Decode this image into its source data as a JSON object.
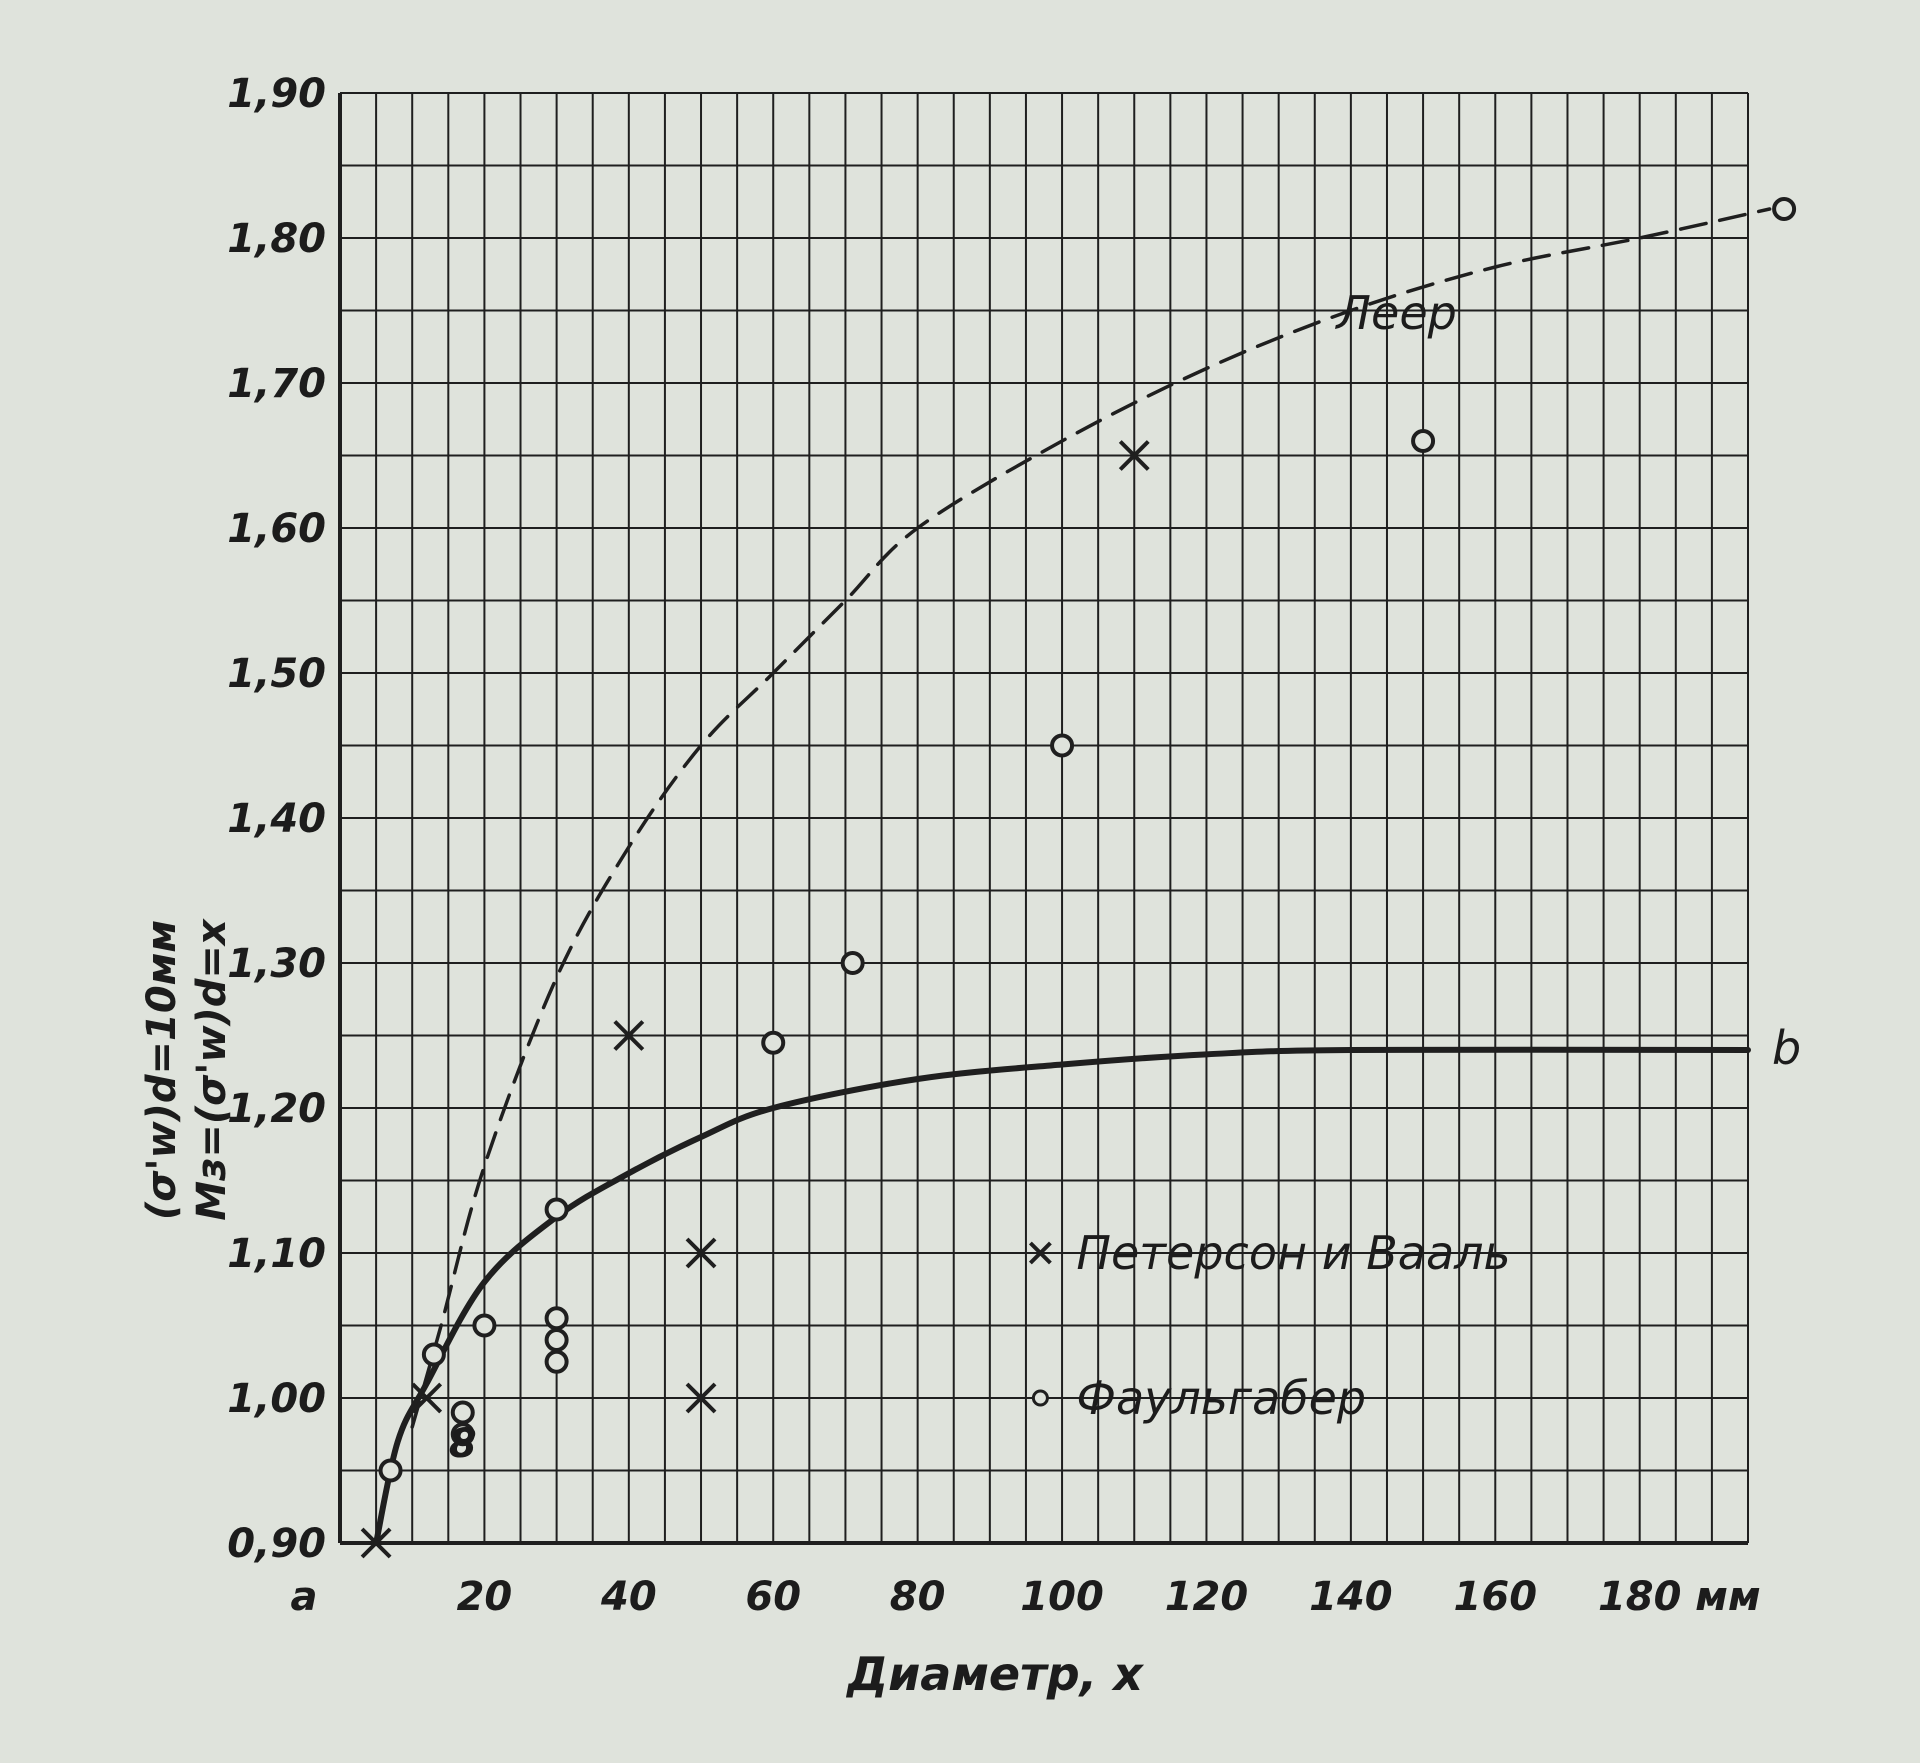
{
  "chart_data": {
    "type": "scatter",
    "title": "",
    "xlabel": "Диаметр, x",
    "x_unit": "мм",
    "ylabel_lines": [
      "(σ'w)d=10мм",
      "Mз=(σ'w)d=x"
    ],
    "xlim": [
      0,
      195
    ],
    "ylim": [
      0.9,
      1.9
    ],
    "grid": true,
    "x_ticks": [
      {
        "value": 0,
        "label": "a"
      },
      {
        "value": 20,
        "label": "20"
      },
      {
        "value": 40,
        "label": "40"
      },
      {
        "value": 60,
        "label": "60"
      },
      {
        "value": 80,
        "label": "80"
      },
      {
        "value": 100,
        "label": "100"
      },
      {
        "value": 120,
        "label": "120"
      },
      {
        "value": 140,
        "label": "140"
      },
      {
        "value": 160,
        "label": "160"
      },
      {
        "value": 180,
        "label": "180"
      }
    ],
    "y_ticks": [
      {
        "value": 0.9,
        "label": "0,90"
      },
      {
        "value": 1.0,
        "label": "1,00"
      },
      {
        "value": 1.1,
        "label": "1,10"
      },
      {
        "value": 1.2,
        "label": "1,20"
      },
      {
        "value": 1.3,
        "label": "1,30"
      },
      {
        "value": 1.4,
        "label": "1,40"
      },
      {
        "value": 1.5,
        "label": "1,50"
      },
      {
        "value": 1.6,
        "label": "1,60"
      },
      {
        "value": 1.7,
        "label": "1,70"
      },
      {
        "value": 1.8,
        "label": "1,80"
      },
      {
        "value": 1.9,
        "label": "1,90"
      }
    ],
    "series": [
      {
        "name": "Петерсон и Вааль",
        "kind": "points",
        "marker": "x",
        "points": [
          {
            "x": 5,
            "y": 0.9
          },
          {
            "x": 12,
            "y": 1.0
          },
          {
            "x": 40,
            "y": 1.25
          },
          {
            "x": 50,
            "y": 1.1
          },
          {
            "x": 50,
            "y": 1.0
          },
          {
            "x": 110,
            "y": 1.65
          }
        ]
      },
      {
        "name": "Фаульгабер",
        "kind": "points",
        "marker": "o",
        "points": [
          {
            "x": 7,
            "y": 0.95
          },
          {
            "x": 13,
            "y": 1.03
          },
          {
            "x": 17,
            "y": 0.99
          },
          {
            "x": 17,
            "y": 0.975
          },
          {
            "x": 20,
            "y": 1.05
          },
          {
            "x": 30,
            "y": 1.13
          },
          {
            "x": 30,
            "y": 1.055
          },
          {
            "x": 30,
            "y": 1.04
          },
          {
            "x": 30,
            "y": 1.025
          },
          {
            "x": 60,
            "y": 1.245
          },
          {
            "x": 71,
            "y": 1.3
          },
          {
            "x": 100,
            "y": 1.45
          },
          {
            "x": 150,
            "y": 1.66
          },
          {
            "x": 200,
            "y": 1.82
          }
        ]
      },
      {
        "label": "b",
        "kind": "curve",
        "style": "solid",
        "points": [
          {
            "x": 5,
            "y": 0.9
          },
          {
            "x": 8,
            "y": 0.97
          },
          {
            "x": 12,
            "y": 1.01
          },
          {
            "x": 20,
            "y": 1.08
          },
          {
            "x": 30,
            "y": 1.125
          },
          {
            "x": 40,
            "y": 1.155
          },
          {
            "x": 50,
            "y": 1.18
          },
          {
            "x": 60,
            "y": 1.2
          },
          {
            "x": 80,
            "y": 1.22
          },
          {
            "x": 100,
            "y": 1.23
          },
          {
            "x": 120,
            "y": 1.237
          },
          {
            "x": 140,
            "y": 1.24
          },
          {
            "x": 195,
            "y": 1.24
          }
        ]
      },
      {
        "label": "Леер",
        "kind": "curve",
        "style": "dashed",
        "points": [
          {
            "x": 10,
            "y": 0.98
          },
          {
            "x": 14,
            "y": 1.05
          },
          {
            "x": 20,
            "y": 1.16
          },
          {
            "x": 30,
            "y": 1.29
          },
          {
            "x": 40,
            "y": 1.38
          },
          {
            "x": 50,
            "y": 1.45
          },
          {
            "x": 60,
            "y": 1.5
          },
          {
            "x": 70,
            "y": 1.55
          },
          {
            "x": 80,
            "y": 1.6
          },
          {
            "x": 100,
            "y": 1.66
          },
          {
            "x": 120,
            "y": 1.71
          },
          {
            "x": 140,
            "y": 1.75
          },
          {
            "x": 160,
            "y": 1.78
          },
          {
            "x": 180,
            "y": 1.8
          },
          {
            "x": 200,
            "y": 1.82
          }
        ]
      }
    ],
    "legend": [
      {
        "marker": "x",
        "text": "Петерсон и Вааль"
      },
      {
        "marker": "o",
        "text": "Фаульгабер"
      }
    ],
    "legend_position": "bottom-right",
    "annotations": [
      {
        "text": "8",
        "x": 17,
        "y": 0.98
      }
    ]
  }
}
